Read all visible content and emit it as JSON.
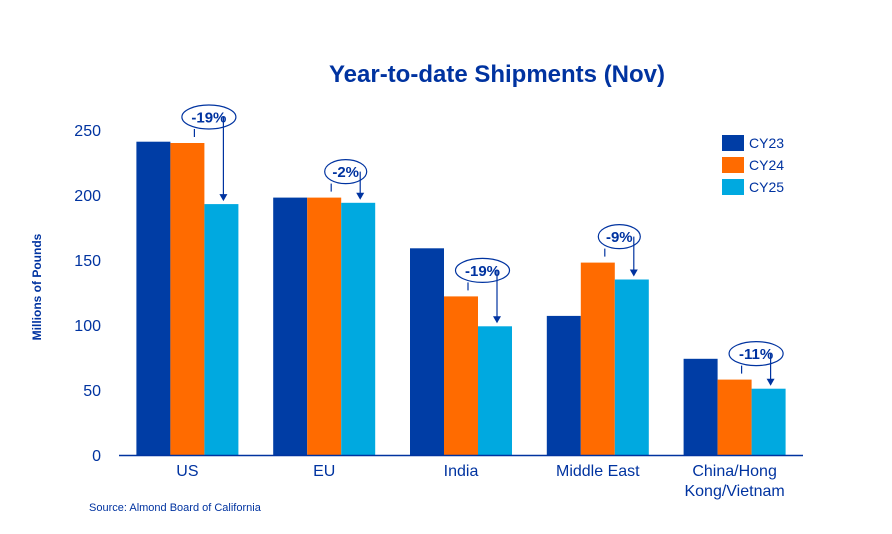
{
  "chart_data": {
    "type": "bar",
    "title": "Year-to-date Shipments (Nov)",
    "xlabel": "",
    "ylabel": "Millions of Pounds",
    "ylim": [
      0,
      250
    ],
    "yticks": [
      0,
      50,
      100,
      150,
      200,
      250
    ],
    "grid": false,
    "legend_position": "top-right",
    "categories": [
      "US",
      "EU",
      "India",
      "Middle East",
      "China/Hong Kong/Vietnam"
    ],
    "category_lines": [
      [
        "US"
      ],
      [
        "EU"
      ],
      [
        "India"
      ],
      [
        "Middle East"
      ],
      [
        "China/Hong",
        "Kong/Vietnam"
      ]
    ],
    "series": [
      {
        "name": "CY23",
        "color": "#003da5",
        "values": [
          241,
          198,
          159,
          107,
          74
        ]
      },
      {
        "name": "CY24",
        "color": "#ff6b00",
        "values": [
          240,
          198,
          122,
          148,
          58
        ]
      },
      {
        "name": "CY25",
        "color": "#00a9e0",
        "values": [
          193,
          194,
          99,
          135,
          51
        ]
      }
    ],
    "annotations": [
      "-19%",
      "-2%",
      "-19%",
      "-9%",
      "-11%"
    ],
    "source": "Source: Almond Board of California"
  },
  "colors": {
    "text": "#0033a0",
    "axis": "#0033a0"
  }
}
